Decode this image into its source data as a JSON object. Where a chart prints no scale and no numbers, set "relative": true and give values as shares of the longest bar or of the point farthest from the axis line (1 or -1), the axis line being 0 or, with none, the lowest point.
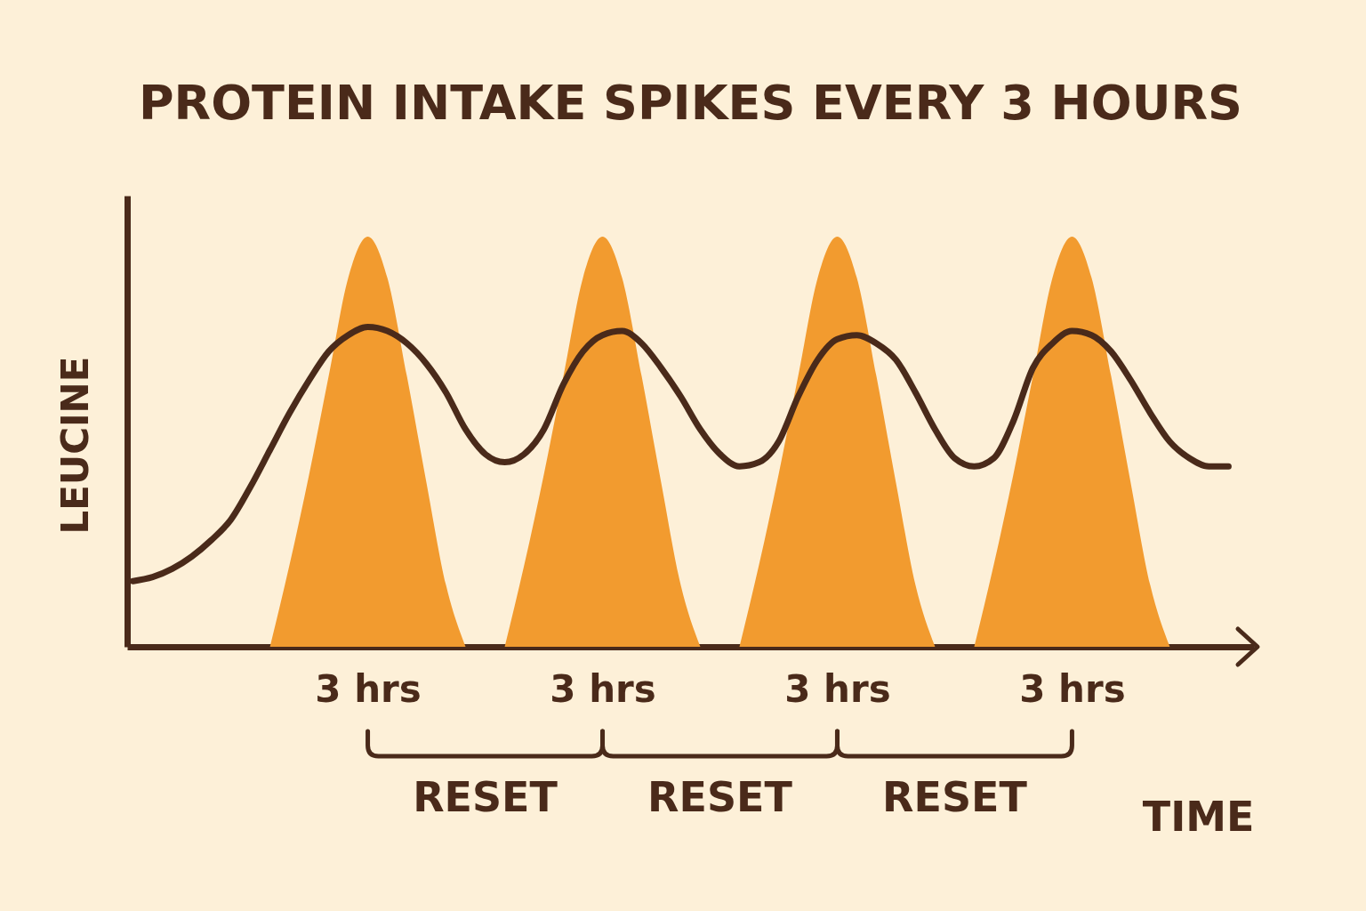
{
  "chart_data": {
    "type": "line",
    "title": "PROTEIN INTAKE SPIKES EVERY 3 HOURS",
    "xlabel": "TIME",
    "ylabel": "LEUCINE",
    "relative": true,
    "categories": [
      null,
      null,
      null,
      null,
      null,
      null,
      null,
      null,
      null,
      null,
      null,
      null,
      "3 hrs",
      null,
      null,
      null,
      null,
      null,
      null,
      null,
      null,
      null,
      null,
      null,
      "3 hrs",
      null,
      null,
      null,
      null,
      null,
      null,
      null,
      null,
      null,
      null,
      null,
      "3 hrs",
      null,
      null,
      null,
      null,
      null,
      null,
      null,
      null,
      null,
      null,
      null,
      "3 hrs",
      null,
      null,
      null,
      null,
      null,
      null,
      null,
      null,
      null
    ],
    "annotations": [
      "RESET",
      "RESET",
      "RESET"
    ],
    "series": [
      {
        "type": "area",
        "color": "#f29b2f",
        "values": [
          null,
          null,
          null,
          null,
          null,
          null,
          null,
          0,
          0.2,
          0.42,
          0.66,
          0.9,
          1,
          0.9,
          0.66,
          0.4,
          0.15,
          0,
          null,
          0,
          0.2,
          0.42,
          0.66,
          0.9,
          1,
          0.9,
          0.66,
          0.4,
          0.15,
          0,
          null,
          0,
          0.2,
          0.42,
          0.66,
          0.9,
          1,
          0.9,
          0.66,
          0.4,
          0.15,
          0,
          null,
          0,
          0.2,
          0.42,
          0.66,
          0.9,
          1,
          0.9,
          0.66,
          0.4,
          0.15,
          0,
          null,
          null,
          null,
          null
        ]
      },
      {
        "color": "#4a2a1a",
        "values": [
          0.16,
          0.17,
          0.19,
          0.22,
          0.26,
          0.31,
          0.39,
          0.48,
          0.57,
          0.65,
          0.72,
          0.76,
          0.78,
          0.77,
          0.74,
          0.69,
          0.62,
          0.53,
          0.47,
          0.45,
          0.47,
          0.53,
          0.64,
          0.72,
          0.76,
          0.77,
          0.74,
          0.68,
          0.61,
          0.53,
          0.47,
          0.44,
          0.45,
          0.5,
          0.61,
          0.7,
          0.75,
          0.76,
          0.74,
          0.7,
          0.62,
          0.53,
          0.46,
          0.44,
          0.46,
          0.55,
          0.68,
          0.74,
          0.77,
          0.76,
          0.72,
          0.65,
          0.57,
          0.5,
          0.46,
          0.44,
          0.44,
          null
        ]
      }
    ]
  }
}
